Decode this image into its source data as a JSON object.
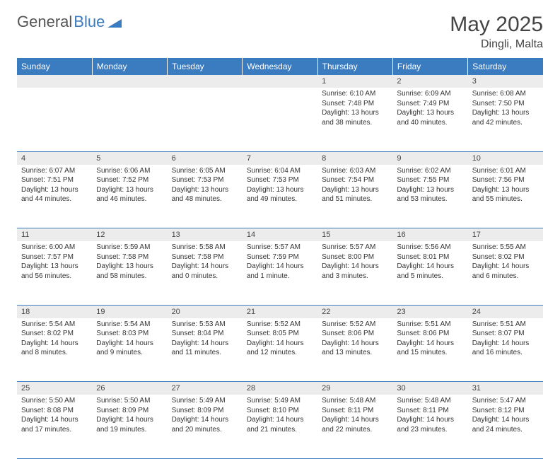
{
  "logo": {
    "text1": "General",
    "text2": "Blue"
  },
  "title": "May 2025",
  "location": "Dingli, Malta",
  "daysOfWeek": [
    "Sunday",
    "Monday",
    "Tuesday",
    "Wednesday",
    "Thursday",
    "Friday",
    "Saturday"
  ],
  "colors": {
    "headerBar": "#3b7bbf",
    "dayNumBg": "#ececec",
    "text": "#333333",
    "rowBorder": "#3b7bbf"
  },
  "weeks": [
    [
      {
        "n": "",
        "sr": "",
        "ss": "",
        "dl": ""
      },
      {
        "n": "",
        "sr": "",
        "ss": "",
        "dl": ""
      },
      {
        "n": "",
        "sr": "",
        "ss": "",
        "dl": ""
      },
      {
        "n": "",
        "sr": "",
        "ss": "",
        "dl": ""
      },
      {
        "n": "1",
        "sr": "Sunrise: 6:10 AM",
        "ss": "Sunset: 7:48 PM",
        "dl": "Daylight: 13 hours and 38 minutes."
      },
      {
        "n": "2",
        "sr": "Sunrise: 6:09 AM",
        "ss": "Sunset: 7:49 PM",
        "dl": "Daylight: 13 hours and 40 minutes."
      },
      {
        "n": "3",
        "sr": "Sunrise: 6:08 AM",
        "ss": "Sunset: 7:50 PM",
        "dl": "Daylight: 13 hours and 42 minutes."
      }
    ],
    [
      {
        "n": "4",
        "sr": "Sunrise: 6:07 AM",
        "ss": "Sunset: 7:51 PM",
        "dl": "Daylight: 13 hours and 44 minutes."
      },
      {
        "n": "5",
        "sr": "Sunrise: 6:06 AM",
        "ss": "Sunset: 7:52 PM",
        "dl": "Daylight: 13 hours and 46 minutes."
      },
      {
        "n": "6",
        "sr": "Sunrise: 6:05 AM",
        "ss": "Sunset: 7:53 PM",
        "dl": "Daylight: 13 hours and 48 minutes."
      },
      {
        "n": "7",
        "sr": "Sunrise: 6:04 AM",
        "ss": "Sunset: 7:53 PM",
        "dl": "Daylight: 13 hours and 49 minutes."
      },
      {
        "n": "8",
        "sr": "Sunrise: 6:03 AM",
        "ss": "Sunset: 7:54 PM",
        "dl": "Daylight: 13 hours and 51 minutes."
      },
      {
        "n": "9",
        "sr": "Sunrise: 6:02 AM",
        "ss": "Sunset: 7:55 PM",
        "dl": "Daylight: 13 hours and 53 minutes."
      },
      {
        "n": "10",
        "sr": "Sunrise: 6:01 AM",
        "ss": "Sunset: 7:56 PM",
        "dl": "Daylight: 13 hours and 55 minutes."
      }
    ],
    [
      {
        "n": "11",
        "sr": "Sunrise: 6:00 AM",
        "ss": "Sunset: 7:57 PM",
        "dl": "Daylight: 13 hours and 56 minutes."
      },
      {
        "n": "12",
        "sr": "Sunrise: 5:59 AM",
        "ss": "Sunset: 7:58 PM",
        "dl": "Daylight: 13 hours and 58 minutes."
      },
      {
        "n": "13",
        "sr": "Sunrise: 5:58 AM",
        "ss": "Sunset: 7:58 PM",
        "dl": "Daylight: 14 hours and 0 minutes."
      },
      {
        "n": "14",
        "sr": "Sunrise: 5:57 AM",
        "ss": "Sunset: 7:59 PM",
        "dl": "Daylight: 14 hours and 1 minute."
      },
      {
        "n": "15",
        "sr": "Sunrise: 5:57 AM",
        "ss": "Sunset: 8:00 PM",
        "dl": "Daylight: 14 hours and 3 minutes."
      },
      {
        "n": "16",
        "sr": "Sunrise: 5:56 AM",
        "ss": "Sunset: 8:01 PM",
        "dl": "Daylight: 14 hours and 5 minutes."
      },
      {
        "n": "17",
        "sr": "Sunrise: 5:55 AM",
        "ss": "Sunset: 8:02 PM",
        "dl": "Daylight: 14 hours and 6 minutes."
      }
    ],
    [
      {
        "n": "18",
        "sr": "Sunrise: 5:54 AM",
        "ss": "Sunset: 8:02 PM",
        "dl": "Daylight: 14 hours and 8 minutes."
      },
      {
        "n": "19",
        "sr": "Sunrise: 5:54 AM",
        "ss": "Sunset: 8:03 PM",
        "dl": "Daylight: 14 hours and 9 minutes."
      },
      {
        "n": "20",
        "sr": "Sunrise: 5:53 AM",
        "ss": "Sunset: 8:04 PM",
        "dl": "Daylight: 14 hours and 11 minutes."
      },
      {
        "n": "21",
        "sr": "Sunrise: 5:52 AM",
        "ss": "Sunset: 8:05 PM",
        "dl": "Daylight: 14 hours and 12 minutes."
      },
      {
        "n": "22",
        "sr": "Sunrise: 5:52 AM",
        "ss": "Sunset: 8:06 PM",
        "dl": "Daylight: 14 hours and 13 minutes."
      },
      {
        "n": "23",
        "sr": "Sunrise: 5:51 AM",
        "ss": "Sunset: 8:06 PM",
        "dl": "Daylight: 14 hours and 15 minutes."
      },
      {
        "n": "24",
        "sr": "Sunrise: 5:51 AM",
        "ss": "Sunset: 8:07 PM",
        "dl": "Daylight: 14 hours and 16 minutes."
      }
    ],
    [
      {
        "n": "25",
        "sr": "Sunrise: 5:50 AM",
        "ss": "Sunset: 8:08 PM",
        "dl": "Daylight: 14 hours and 17 minutes."
      },
      {
        "n": "26",
        "sr": "Sunrise: 5:50 AM",
        "ss": "Sunset: 8:09 PM",
        "dl": "Daylight: 14 hours and 19 minutes."
      },
      {
        "n": "27",
        "sr": "Sunrise: 5:49 AM",
        "ss": "Sunset: 8:09 PM",
        "dl": "Daylight: 14 hours and 20 minutes."
      },
      {
        "n": "28",
        "sr": "Sunrise: 5:49 AM",
        "ss": "Sunset: 8:10 PM",
        "dl": "Daylight: 14 hours and 21 minutes."
      },
      {
        "n": "29",
        "sr": "Sunrise: 5:48 AM",
        "ss": "Sunset: 8:11 PM",
        "dl": "Daylight: 14 hours and 22 minutes."
      },
      {
        "n": "30",
        "sr": "Sunrise: 5:48 AM",
        "ss": "Sunset: 8:11 PM",
        "dl": "Daylight: 14 hours and 23 minutes."
      },
      {
        "n": "31",
        "sr": "Sunrise: 5:47 AM",
        "ss": "Sunset: 8:12 PM",
        "dl": "Daylight: 14 hours and 24 minutes."
      }
    ]
  ]
}
